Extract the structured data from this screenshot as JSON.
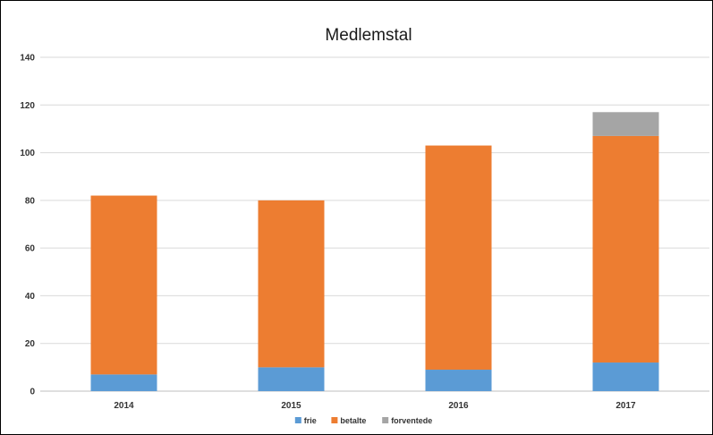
{
  "chart_data": {
    "type": "bar",
    "stacked": true,
    "title": "Medlemstal",
    "xlabel": "",
    "ylabel": "",
    "categories": [
      "2014",
      "2015",
      "2016",
      "2017"
    ],
    "series": [
      {
        "name": "frie",
        "color": "#5b9bd5",
        "values": [
          7,
          10,
          9,
          12
        ]
      },
      {
        "name": "betalte",
        "color": "#ed7d31",
        "values": [
          75,
          70,
          94,
          95
        ]
      },
      {
        "name": "forventede",
        "color": "#a5a5a5",
        "values": [
          0,
          0,
          0,
          10
        ]
      }
    ],
    "ylim": [
      0,
      140
    ],
    "yticks": [
      "0",
      "20",
      "40",
      "60",
      "80",
      "100",
      "120",
      "140"
    ],
    "grid": true,
    "legend": "bottom-center"
  }
}
